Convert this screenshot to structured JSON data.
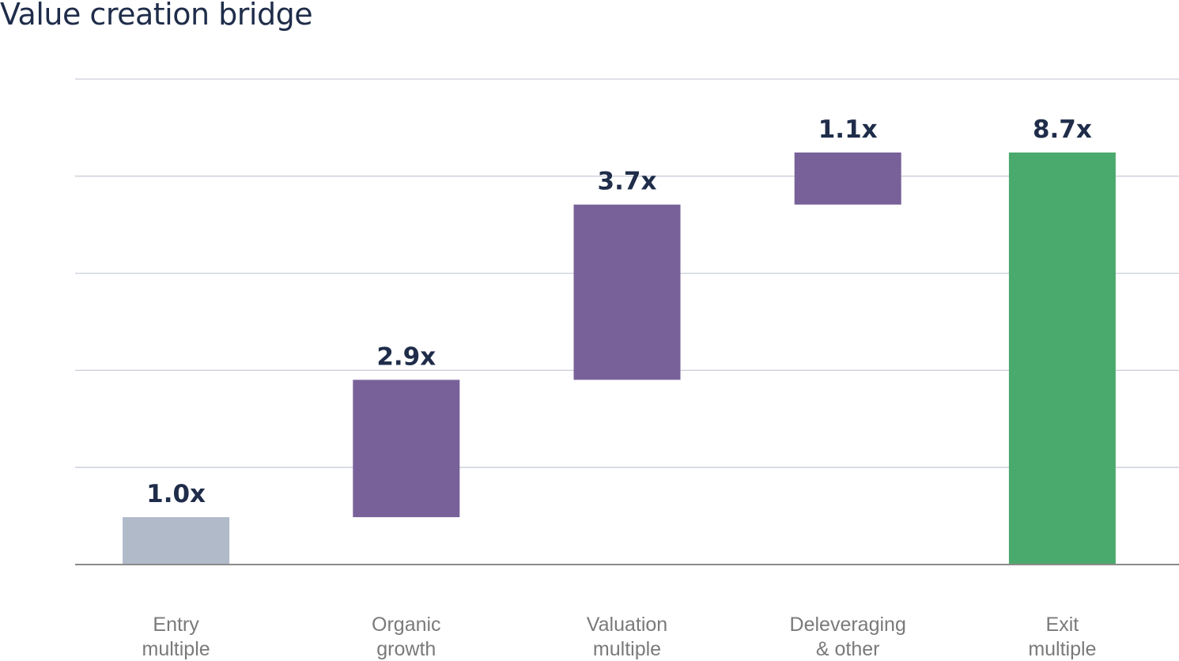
{
  "title": "Value creation bridge",
  "chart_data": {
    "type": "bar",
    "subtype": "waterfall",
    "title": "Value creation bridge",
    "xlabel": "",
    "ylabel": "",
    "ylim": [
      0,
      10.25
    ],
    "grid": true,
    "grid_lines": 5,
    "categories": [
      [
        "Entry",
        "multiple"
      ],
      [
        "Organic",
        "growth"
      ],
      [
        "Valuation",
        "multiple"
      ],
      [
        "Deleveraging",
        "& other"
      ],
      [
        "Exit",
        "multiple"
      ]
    ],
    "values": [
      1.0,
      2.9,
      3.7,
      1.1,
      8.7
    ],
    "kinds": [
      "total",
      "delta",
      "delta",
      "delta",
      "total"
    ],
    "labels": [
      "1.0x",
      "2.9x",
      "3.7x",
      "1.1x",
      "8.7x"
    ],
    "colors": {
      "start": "#b0bac9",
      "delta": "#786199",
      "end": "#4aa96c",
      "grid": "#c9ced8",
      "axis": "#8a8a8a"
    }
  }
}
